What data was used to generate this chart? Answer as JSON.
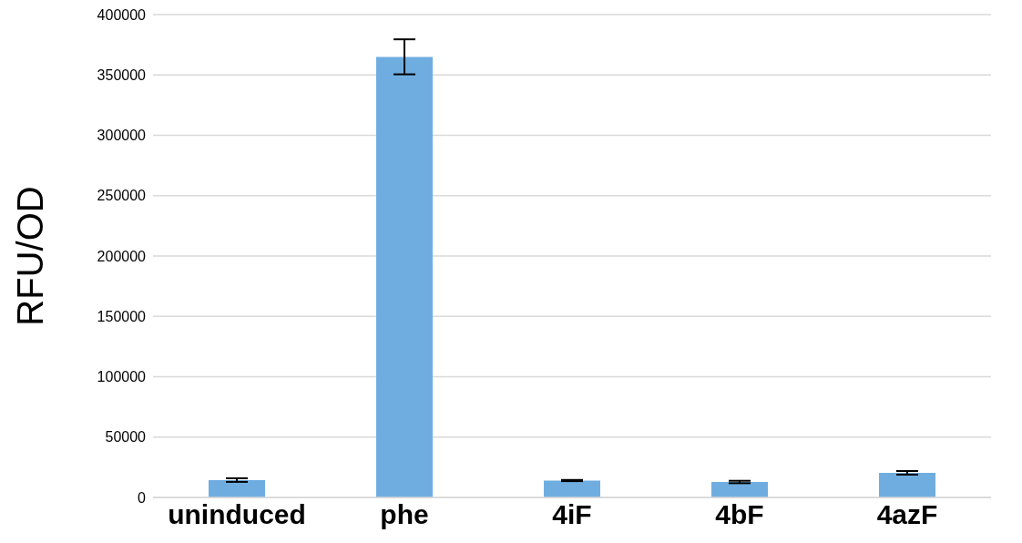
{
  "chart_data": {
    "type": "bar",
    "ylabel": "RFU/OD",
    "categories": [
      "uninduced",
      "phe",
      "4iF",
      "4bF",
      "4azF"
    ],
    "values": [
      14400,
      365000,
      14000,
      12800,
      20400
    ],
    "errors": [
      1500,
      14500,
      500,
      1000,
      1500
    ],
    "color": "#6fade0",
    "ylim": [
      0,
      400000
    ],
    "yticks": [
      0,
      50000,
      100000,
      150000,
      200000,
      250000,
      300000,
      350000,
      400000
    ],
    "grid": "y"
  }
}
